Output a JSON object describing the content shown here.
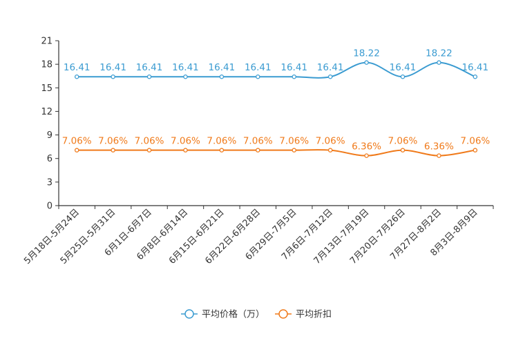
{
  "chart_data": {
    "type": "line",
    "title": "",
    "xlabel": "",
    "ylabel": "",
    "ylim": [
      0,
      21
    ],
    "yticks": [
      "0",
      "3",
      "6",
      "9",
      "12",
      "15",
      "18",
      "21"
    ],
    "categories": [
      "5月18日-5月24日",
      "5月25日-5月31日",
      "6月1日-6月7日",
      "6月8日-6月14日",
      "6月15日-6月21日",
      "6月22日-6月28日",
      "6月29日-7月5日",
      "7月6日-7月12日",
      "7月13日-7月19日",
      "7月20日-7月26日",
      "7月27日-8月2日",
      "8月3日-8月9日"
    ],
    "series": [
      {
        "name": "平均价格（万）",
        "color": "#3a9bd1",
        "values": [
          16.41,
          16.41,
          16.41,
          16.41,
          16.41,
          16.41,
          16.41,
          16.41,
          18.22,
          16.41,
          18.22,
          16.41
        ],
        "labels": [
          "16.41",
          "16.41",
          "16.41",
          "16.41",
          "16.41",
          "16.41",
          "16.41",
          "16.41",
          "18.22",
          "16.41",
          "18.22",
          "16.41"
        ]
      },
      {
        "name": "平均折扣",
        "color": "#f07a1a",
        "values": [
          7.06,
          7.06,
          7.06,
          7.06,
          7.06,
          7.06,
          7.06,
          7.06,
          6.36,
          7.06,
          6.36,
          7.06
        ],
        "labels": [
          "7.06%",
          "7.06%",
          "7.06%",
          "7.06%",
          "7.06%",
          "7.06%",
          "7.06%",
          "7.06%",
          "6.36%",
          "7.06%",
          "6.36%",
          "7.06%"
        ]
      }
    ],
    "legend_position": "bottom-center"
  }
}
